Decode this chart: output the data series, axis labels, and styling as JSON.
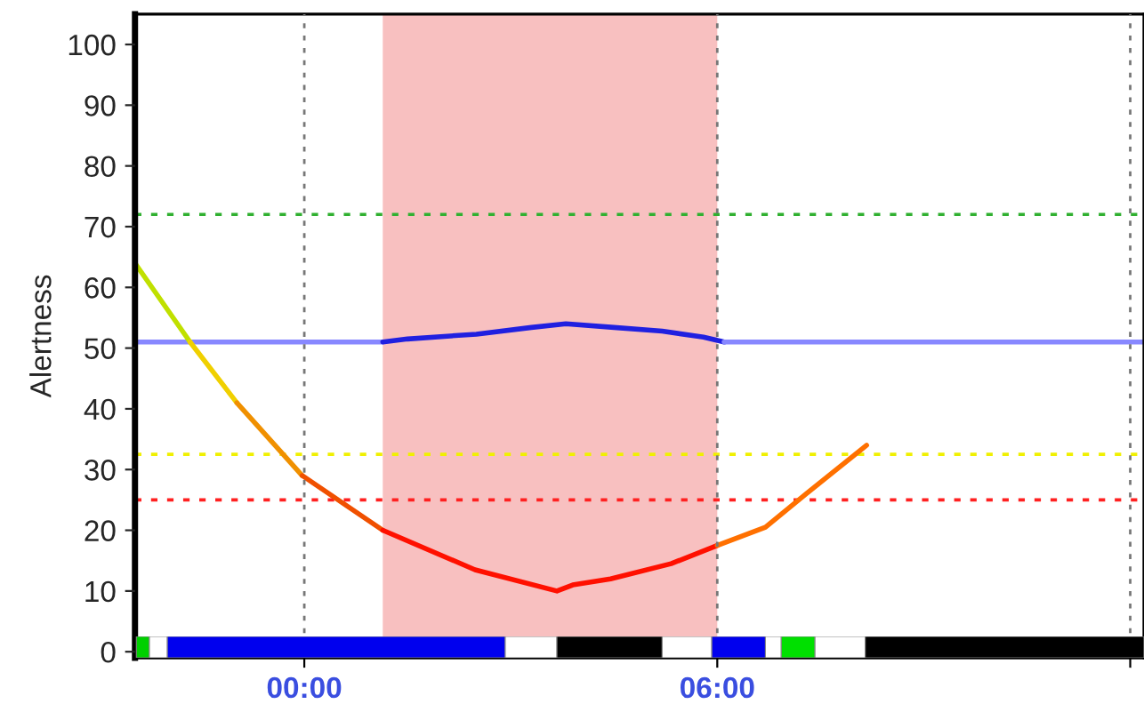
{
  "chart_data": [
    {
      "type": "line",
      "ylabel": "Alertness",
      "xlim": [
        -2.46,
        12.2
      ],
      "ylim": [
        -1,
        105
      ],
      "xticks": [
        {
          "value": 0,
          "label": "00:00"
        },
        {
          "value": 6,
          "label": "06:00"
        },
        {
          "value": 12,
          "label": null
        }
      ],
      "yticks": [
        0,
        10,
        20,
        30,
        40,
        50,
        60,
        70,
        80,
        90,
        100
      ],
      "grid": "x",
      "legend": false,
      "series": [
        {
          "x": [
            -2.46,
            1.14
          ],
          "values": [
            51,
            51
          ],
          "color": "#8888ff"
        },
        {
          "x": [
            1.14,
            1.5,
            2.5,
            3.3,
            3.8,
            4.5,
            5.2,
            5.8,
            6.1
          ],
          "values": [
            51,
            51.5,
            52.3,
            53.4,
            54,
            53.4,
            52.8,
            51.8,
            51
          ],
          "color": "#2020e0"
        },
        {
          "x": [
            6.1,
            12.2
          ],
          "values": [
            51,
            51
          ],
          "color": "#8888ff"
        },
        {
          "x": [
            -2.46,
            -1.66
          ],
          "values": [
            64,
            51
          ],
          "color": "#c0e000"
        },
        {
          "x": [
            -1.66,
            -0.98
          ],
          "values": [
            51,
            41
          ],
          "color": "#f0d000"
        },
        {
          "x": [
            -0.98,
            -0.03
          ],
          "values": [
            41,
            29
          ],
          "color": "#f09000"
        },
        {
          "x": [
            -0.03,
            1.14
          ],
          "values": [
            29,
            20
          ],
          "color": "#f05000"
        },
        {
          "x": [
            1.14,
            2.48,
            3.67,
            3.9,
            4.45,
            5.33,
            6.0
          ],
          "values": [
            20,
            13.5,
            10,
            11,
            12,
            14.5,
            17.5
          ],
          "color": "#ff1000"
        },
        {
          "x": [
            6.0,
            6.7,
            7.29,
            8.17
          ],
          "values": [
            17.5,
            20.5,
            26,
            34
          ],
          "color": "#ff7000"
        }
      ],
      "bands": [
        {
          "axis": "x",
          "from": 1.14,
          "to": 6.0,
          "color": "#f8c0c0"
        }
      ],
      "ref_lines": [
        {
          "axis": "y",
          "value": 72,
          "color": "#30b030",
          "line_style": "dotted"
        },
        {
          "axis": "y",
          "value": 32.5,
          "color": "#f0f000",
          "line_style": "dotted"
        },
        {
          "axis": "y",
          "value": 25,
          "color": "#ff2020",
          "line_style": "dotted"
        }
      ]
    },
    {
      "type": "bar",
      "orientation": "horizontal",
      "categories": [
        null
      ],
      "xlim": [
        -2.46,
        12.2
      ],
      "series": [
        {
          "values": [
            0.19
          ],
          "base": [
            -2.44
          ],
          "color": "#00d000"
        },
        {
          "values": [
            0.26
          ],
          "base": [
            -2.25
          ],
          "color": "#ffffff"
        },
        {
          "values": [
            4.91
          ],
          "base": [
            -1.99
          ],
          "color": "#0000ee"
        },
        {
          "values": [
            0.75
          ],
          "base": [
            2.92
          ],
          "color": "#ffffff"
        },
        {
          "values": [
            1.53
          ],
          "base": [
            3.67
          ],
          "color": "#000000"
        },
        {
          "values": [
            0.72
          ],
          "base": [
            5.2
          ],
          "color": "#ffffff"
        },
        {
          "values": [
            0.78
          ],
          "base": [
            5.92
          ],
          "color": "#0000ee"
        },
        {
          "values": [
            0.23
          ],
          "base": [
            6.7
          ],
          "color": "#ffffff"
        },
        {
          "values": [
            0.49
          ],
          "base": [
            6.93
          ],
          "color": "#00e000"
        },
        {
          "values": [
            0.73
          ],
          "base": [
            7.42
          ],
          "color": "#ffffff"
        },
        {
          "values": [
            4.05
          ],
          "base": [
            8.15
          ],
          "color": "#000000"
        }
      ]
    }
  ]
}
